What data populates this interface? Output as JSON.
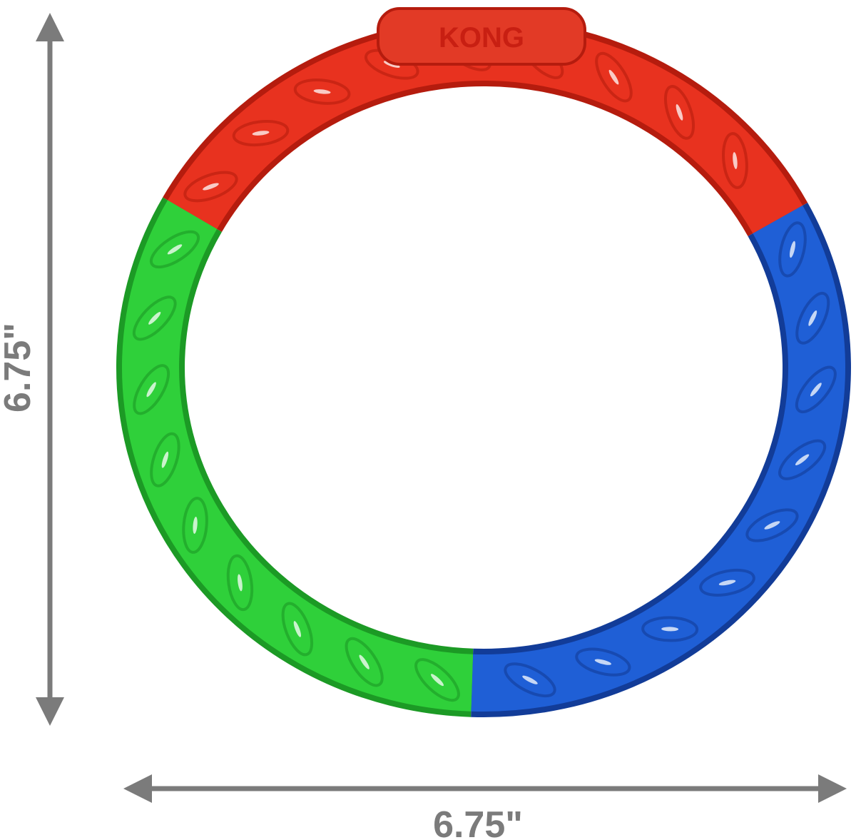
{
  "product": {
    "logo_text": "KONG",
    "segments": [
      {
        "name": "red",
        "color": "#e8321f",
        "shade": "#b51c0e"
      },
      {
        "name": "blue",
        "color": "#1f5fd6",
        "shade": "#123c98"
      },
      {
        "name": "green",
        "color": "#2fd03a",
        "shade": "#1c9a25"
      }
    ]
  },
  "dimensions": {
    "height_label": "6.75\"",
    "width_label": "6.75\"",
    "arrow_color": "#7b7b7b"
  }
}
